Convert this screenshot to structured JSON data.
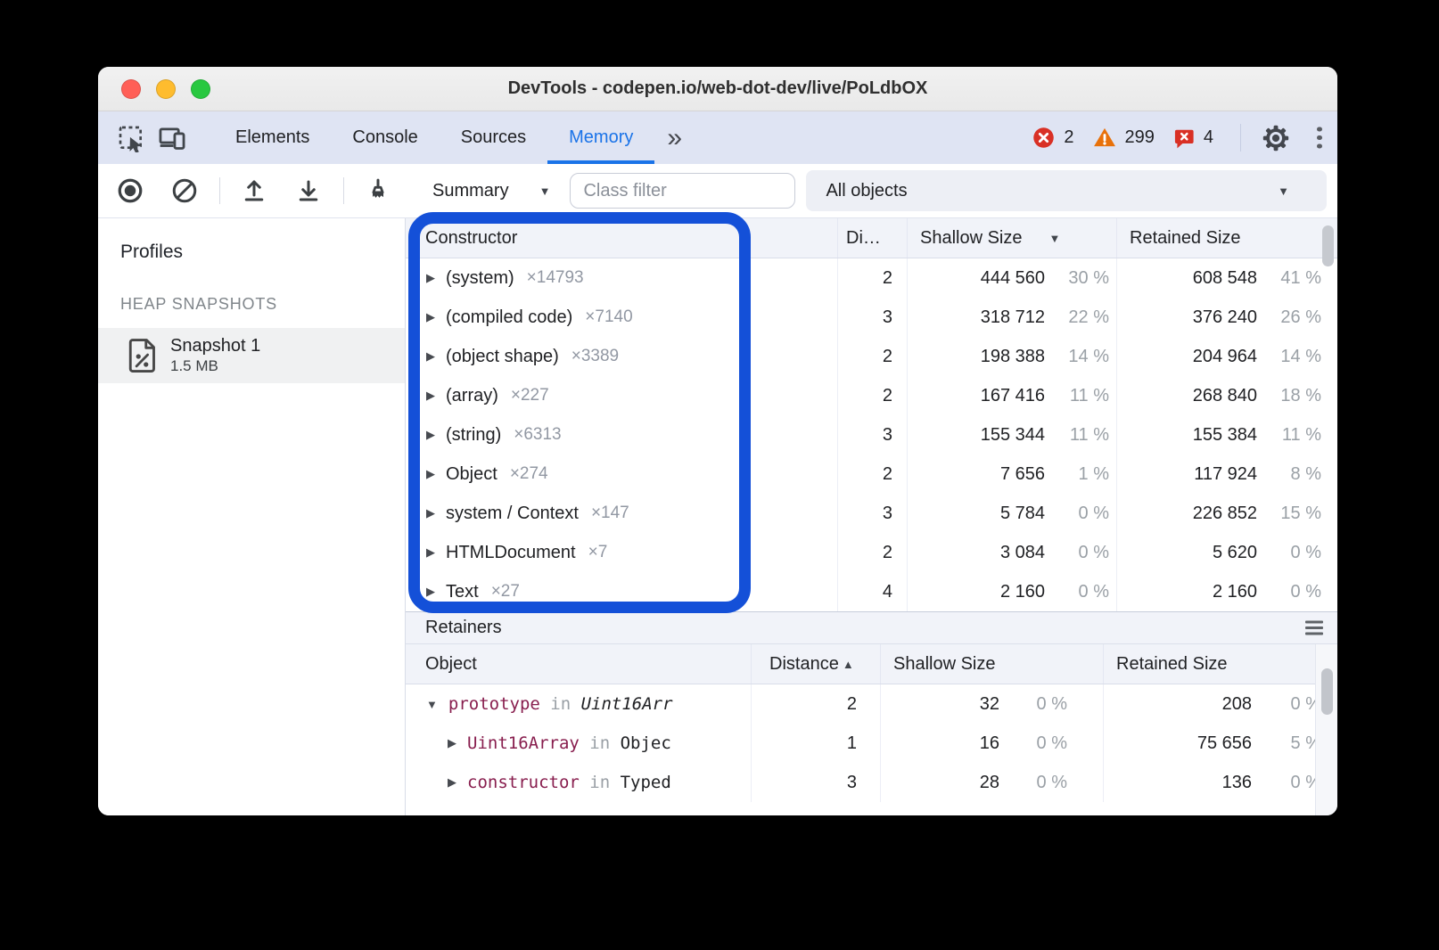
{
  "window": {
    "title": "DevTools - codepen.io/web-dot-dev/live/PoLdbOX"
  },
  "tab_bar": {
    "tabs": [
      {
        "label": "Elements",
        "active": false
      },
      {
        "label": "Console",
        "active": false
      },
      {
        "label": "Sources",
        "active": false
      },
      {
        "label": "Memory",
        "active": true
      }
    ],
    "error_count": "2",
    "warning_count": "299",
    "issue_count": "4"
  },
  "toolbar": {
    "profiling_mode": {
      "selected": "Summary"
    },
    "class_filter": {
      "placeholder": "Class filter",
      "value": ""
    },
    "scope_select": {
      "selected": "All objects"
    }
  },
  "sidebar": {
    "profiles_label": "Profiles",
    "section_label": "HEAP SNAPSHOTS",
    "snapshots": [
      {
        "name": "Snapshot 1",
        "size": "1.5 MB",
        "selected": true
      }
    ]
  },
  "constructor_table": {
    "columns": {
      "constructor": "Constructor",
      "distance": "Di…",
      "shallow": "Shallow Size",
      "retained": "Retained Size"
    },
    "sort": {
      "column": "shallow",
      "direction": "desc"
    },
    "rows": [
      {
        "name": "(system)",
        "count": "×14793",
        "distance": "2",
        "shallow": "444 560",
        "shallow_pct": "30 %",
        "retained": "608 548",
        "retained_pct": "41 %"
      },
      {
        "name": "(compiled code)",
        "count": "×7140",
        "distance": "3",
        "shallow": "318 712",
        "shallow_pct": "22 %",
        "retained": "376 240",
        "retained_pct": "26 %"
      },
      {
        "name": "(object shape)",
        "count": "×3389",
        "distance": "2",
        "shallow": "198 388",
        "shallow_pct": "14 %",
        "retained": "204 964",
        "retained_pct": "14 %"
      },
      {
        "name": "(array)",
        "count": "×227",
        "distance": "2",
        "shallow": "167 416",
        "shallow_pct": "11 %",
        "retained": "268 840",
        "retained_pct": "18 %"
      },
      {
        "name": "(string)",
        "count": "×6313",
        "distance": "3",
        "shallow": "155 344",
        "shallow_pct": "11 %",
        "retained": "155 384",
        "retained_pct": "11 %"
      },
      {
        "name": "Object",
        "count": "×274",
        "distance": "2",
        "shallow": "7 656",
        "shallow_pct": "1 %",
        "retained": "117 924",
        "retained_pct": "8 %"
      },
      {
        "name": "system / Context",
        "count": "×147",
        "distance": "3",
        "shallow": "5 784",
        "shallow_pct": "0 %",
        "retained": "226 852",
        "retained_pct": "15 %"
      },
      {
        "name": "HTMLDocument",
        "count": "×7",
        "distance": "2",
        "shallow": "3 084",
        "shallow_pct": "0 %",
        "retained": "5 620",
        "retained_pct": "0 %"
      },
      {
        "name": "Text",
        "count": "×27",
        "distance": "4",
        "shallow": "2 160",
        "shallow_pct": "0 %",
        "retained": "2 160",
        "retained_pct": "0 %"
      }
    ]
  },
  "retainers": {
    "title": "Retainers",
    "columns": {
      "object": "Object",
      "distance": "Distance",
      "shallow": "Shallow Size",
      "retained": "Retained Size"
    },
    "sort": {
      "column": "distance",
      "direction": "asc"
    },
    "rows": [
      {
        "property": "prototype",
        "in_kw": " in ",
        "object": "Uint16Arr",
        "object_italic": true,
        "expanded": true,
        "indent": 0,
        "distance": "2",
        "shallow": "32",
        "shallow_pct": "0 %",
        "retained": "208",
        "retained_pct": "0 %"
      },
      {
        "property": "Uint16Array",
        "in_kw": " in ",
        "object": "Objec",
        "object_italic": false,
        "expanded": false,
        "indent": 1,
        "distance": "1",
        "shallow": "16",
        "shallow_pct": "0 %",
        "retained": "75 656",
        "retained_pct": "5 %"
      },
      {
        "property": "constructor",
        "in_kw": " in ",
        "object": "Typed",
        "object_italic": false,
        "expanded": false,
        "indent": 1,
        "distance": "3",
        "shallow": "28",
        "shallow_pct": "0 %",
        "retained": "136",
        "retained_pct": "0 %"
      }
    ]
  },
  "icons": {
    "more_tabs": "»",
    "sort_desc": "▼",
    "sort_asc": "▲",
    "expand_collapsed": "▶",
    "expand_expanded": "▼",
    "dropdown_arrow": "▼"
  },
  "colors": {
    "accent_blue": "#1a73e8",
    "highlight_blue": "#1450d8",
    "error_red": "#d93025",
    "warning_orange": "#e8710a",
    "retainer_property": "#881e4e",
    "header_bg": "#f1f3f9",
    "tabbar_bg": "#dfe4f3"
  }
}
